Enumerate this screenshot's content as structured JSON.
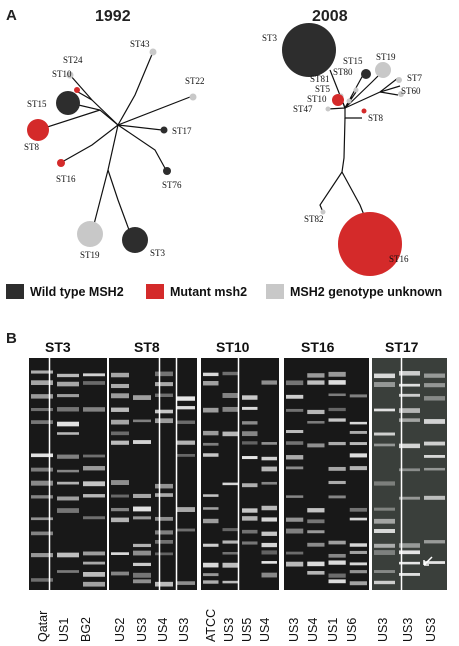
{
  "panel_a": {
    "letter": "A",
    "years": [
      "1992",
      "2008"
    ],
    "tree_1992": {
      "nodes": [
        {
          "label": "ST24",
          "genotype": "unknown"
        },
        {
          "label": "ST43",
          "genotype": "unknown"
        },
        {
          "label": "ST10",
          "genotype": "mutant"
        },
        {
          "label": "ST22",
          "genotype": "unknown"
        },
        {
          "label": "ST15",
          "genotype": "wild"
        },
        {
          "label": "ST8",
          "genotype": "mutant"
        },
        {
          "label": "ST17",
          "genotype": "wild"
        },
        {
          "label": "ST16",
          "genotype": "mutant"
        },
        {
          "label": "ST76",
          "genotype": "wild"
        },
        {
          "label": "ST19",
          "genotype": "unknown"
        },
        {
          "label": "ST3",
          "genotype": "wild"
        }
      ]
    },
    "tree_2008": {
      "nodes": [
        {
          "label": "ST3",
          "genotype": "wild"
        },
        {
          "label": "ST15",
          "genotype": "wild"
        },
        {
          "label": "ST19",
          "genotype": "unknown"
        },
        {
          "label": "ST80",
          "genotype": "unknown"
        },
        {
          "label": "ST81",
          "genotype": "unknown"
        },
        {
          "label": "ST5",
          "genotype": "unknown"
        },
        {
          "label": "ST7",
          "genotype": "unknown"
        },
        {
          "label": "ST60",
          "genotype": "unknown"
        },
        {
          "label": "ST10",
          "genotype": "mutant"
        },
        {
          "label": "ST47",
          "genotype": "unknown"
        },
        {
          "label": "ST8",
          "genotype": "mutant"
        },
        {
          "label": "ST82",
          "genotype": "unknown"
        },
        {
          "label": "ST16",
          "genotype": "mutant"
        }
      ]
    },
    "legend": [
      {
        "label": "Wild type MSH2",
        "color": "#2d2d2d"
      },
      {
        "label": "Mutant msh2",
        "color": "#d42a2a"
      },
      {
        "label": "MSH2 genotype unknown",
        "color": "#c8c8c8"
      }
    ]
  },
  "panel_b": {
    "letter": "B",
    "groups": [
      {
        "title": "ST3",
        "lanes": [
          "Qatar",
          "US1",
          "BG2"
        ]
      },
      {
        "title": "ST8",
        "lanes": [
          "US2",
          "US3",
          "US4",
          "US3"
        ]
      },
      {
        "title": "ST10",
        "lanes": [
          "ATCC",
          "US3",
          "US5",
          "US4"
        ]
      },
      {
        "title": "ST16",
        "lanes": [
          "US3",
          "US4",
          "US1",
          "US6"
        ]
      },
      {
        "title": "ST17",
        "lanes": [
          "US3",
          "US3",
          "US3"
        ]
      }
    ]
  },
  "colors": {
    "wild": "#2d2d2d",
    "mutant": "#d42a2a",
    "unknown": "#c8c8c8"
  }
}
